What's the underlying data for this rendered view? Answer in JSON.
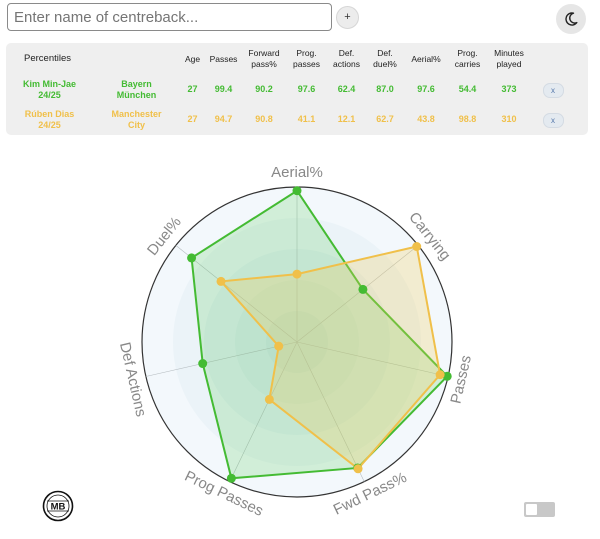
{
  "search": {
    "placeholder": "Enter name of centreback..."
  },
  "add_button_label": "+",
  "table": {
    "headers": [
      "Percentiles",
      "",
      "Age",
      "Passes",
      "Forward\npass%",
      "Prog.\npasses",
      "Def.\nactions",
      "Def.\nduel%",
      "Aerial%",
      "Prog.\ncarries",
      "Minutes\nplayed",
      ""
    ],
    "rows": [
      {
        "player": "Kim Min-Jae\n24/25",
        "team": "Bayern\nMünchen",
        "values": [
          "27",
          "99.4",
          "90.2",
          "97.6",
          "62.4",
          "87.0",
          "97.6",
          "54.4",
          "373"
        ],
        "remove_label": "x",
        "color": "#44bb33"
      },
      {
        "player": "Rúben Dias\n24/25",
        "team": "Manchester\nCity",
        "values": [
          "27",
          "94.7",
          "90.8",
          "41.1",
          "12.1",
          "62.7",
          "43.8",
          "98.8",
          "310"
        ],
        "remove_label": "x",
        "color": "#f0c04a"
      }
    ]
  },
  "chart_data": {
    "type": "radar",
    "axes": [
      "Aerial%",
      "Carrying",
      "Passes",
      "Fwd Pass%",
      "Prog Passes",
      "Def Actions",
      "Duel%"
    ],
    "range": [
      0,
      100
    ],
    "series": [
      {
        "name": "Kim Min-Jae 24/25",
        "color": "#44bb33",
        "values": [
          97.6,
          54.4,
          99.4,
          90.2,
          97.6,
          62.4,
          87.0
        ]
      },
      {
        "name": "Rúben Dias 24/25",
        "color": "#f0c04a",
        "values": [
          43.8,
          98.8,
          94.7,
          90.8,
          41.1,
          12.1,
          62.7
        ]
      }
    ]
  },
  "logo_text": "MB"
}
